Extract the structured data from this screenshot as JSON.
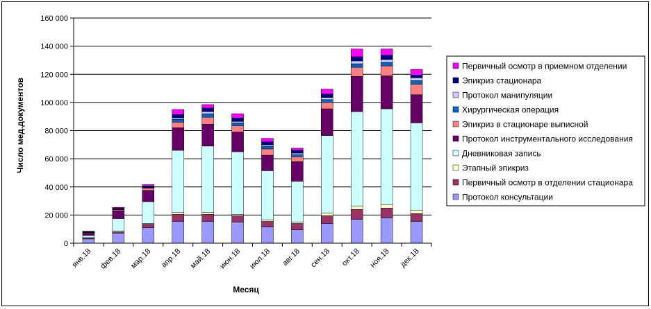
{
  "chart_data": {
    "type": "bar",
    "stacked": true,
    "title": "",
    "xlabel": "Месяц",
    "ylabel": "Число мед.документов",
    "ylim": [
      0,
      160000
    ],
    "ytick_step": 20000,
    "ytick_labels": [
      "0",
      "20 000",
      "40 000",
      "60 000",
      "80 000",
      "100 000",
      "120 000",
      "140 000",
      "160 000"
    ],
    "grid": true,
    "legend_position": "right",
    "categories": [
      "янв.18",
      "фев.18",
      "мар.18",
      "апр.18",
      "май.18",
      "июн.18",
      "июл.18",
      "авг.18",
      "сен.18",
      "окт.18",
      "ноя.18",
      "дек.18"
    ],
    "series": [
      {
        "name": "Протокол консультации",
        "color": "#9999ff",
        "values": [
          3000,
          7000,
          11000,
          15500,
          15500,
          15000,
          11500,
          9500,
          14000,
          17000,
          18000,
          15500
        ]
      },
      {
        "name": "Первичный осмотр в отделении стационара",
        "color": "#993366",
        "values": [
          500,
          1000,
          2500,
          5000,
          5000,
          4500,
          4000,
          4500,
          5500,
          7000,
          7000,
          5500
        ]
      },
      {
        "name": "Этапный эпикриз",
        "color": "#ffffcc",
        "values": [
          500,
          500,
          500,
          1500,
          1500,
          1000,
          1000,
          1000,
          2000,
          2500,
          2500,
          2500
        ]
      },
      {
        "name": "Дневниковая запись",
        "color": "#ccffff",
        "values": [
          1500,
          9000,
          15500,
          44000,
          47000,
          44500,
          35000,
          29000,
          55000,
          67000,
          68000,
          62000
        ]
      },
      {
        "name": "Протокол инструментального исследования",
        "color": "#660066",
        "values": [
          2000,
          5500,
          8000,
          16000,
          15500,
          14000,
          11000,
          14000,
          19000,
          25000,
          23500,
          20000
        ]
      },
      {
        "name": "Эпикриз в стационаре выписной",
        "color": "#ff8080",
        "values": [
          300,
          700,
          1500,
          4000,
          5000,
          4500,
          4500,
          3500,
          4500,
          6500,
          7000,
          7500
        ]
      },
      {
        "name": "Хирургическая операция",
        "color": "#0066cc",
        "values": [
          100,
          400,
          500,
          2000,
          2500,
          2000,
          2000,
          1500,
          2000,
          2500,
          2500,
          2500
        ]
      },
      {
        "name": "Протокол манипуляции",
        "color": "#ccccff",
        "values": [
          100,
          200,
          300,
          1000,
          1500,
          1000,
          1000,
          1000,
          1500,
          2000,
          2000,
          2000
        ]
      },
      {
        "name": "Эпикриз стационара",
        "color": "#000080",
        "values": [
          200,
          500,
          800,
          2500,
          2500,
          2500,
          2000,
          2000,
          2500,
          3000,
          3000,
          2000
        ]
      },
      {
        "name": "Первичный осмотр в приемном отделении",
        "color": "#ff00ff",
        "values": [
          300,
          700,
          1000,
          3500,
          2500,
          3000,
          2500,
          1500,
          3500,
          5500,
          4500,
          4000
        ]
      }
    ]
  }
}
